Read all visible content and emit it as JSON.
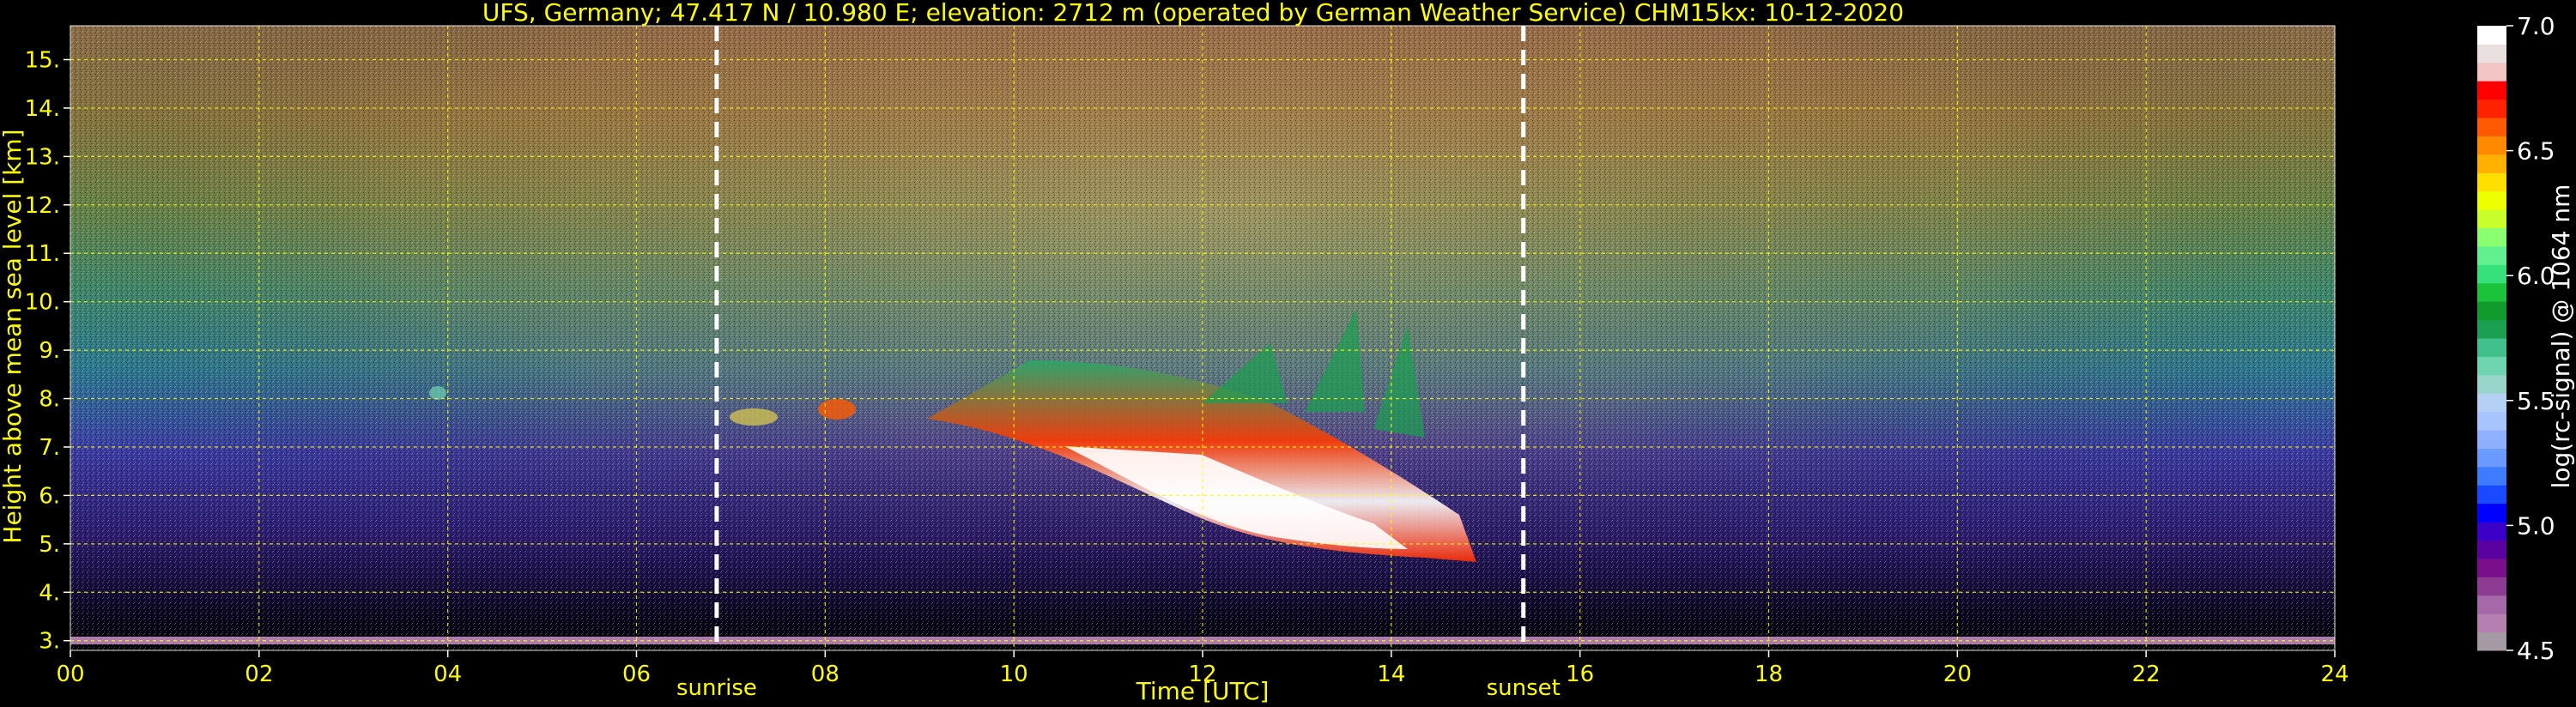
{
  "chart_data": {
    "type": "heatmap",
    "title": "UFS, Germany; 47.417 N / 10.980 E; elevation: 2712 m  (operated by German Weather Service)    CHM15kx: 10-12-2020",
    "xlabel": "Time [UTC]",
    "ylabel": "Height above mean sea level [km]",
    "x_ticks": [
      "00",
      "02",
      "04",
      "06",
      "08",
      "10",
      "12",
      "14",
      "16",
      "18",
      "20",
      "22",
      "24"
    ],
    "y_ticks": [
      "3.",
      "4.",
      "5.",
      "6.",
      "7.",
      "8.",
      "9.",
      "10.",
      "11.",
      "12.",
      "13.",
      "14.",
      "15."
    ],
    "xlim": [
      0,
      24
    ],
    "ylim": [
      2.8,
      15.7
    ],
    "grid": true,
    "markers": [
      {
        "label": "sunrise",
        "x": 6.85
      },
      {
        "label": "sunset",
        "x": 15.4
      }
    ],
    "colorbar": {
      "label": "log(rc-signal) @ 1064 nm",
      "ticks": [
        "4.5",
        "5.0",
        "5.5",
        "6.0",
        "6.5",
        "7.0"
      ],
      "range": [
        4.5,
        7.0
      ],
      "colors": [
        "#a59aa3",
        "#b57fb1",
        "#a568a8",
        "#8e3c93",
        "#7a0f8b",
        "#5a00a0",
        "#3b00c8",
        "#0000ff",
        "#1a4aff",
        "#3d7bff",
        "#6a9aff",
        "#8fb0ff",
        "#a8c4ff",
        "#b4d0f4",
        "#9ad5cb",
        "#6fd4b0",
        "#42c08c",
        "#1aa050",
        "#119b2d",
        "#1bc33a",
        "#36e07a",
        "#60f090",
        "#8aff70",
        "#c8ff2a",
        "#eeff00",
        "#ffde00",
        "#ffb000",
        "#ff8a00",
        "#ff5a00",
        "#ff2200",
        "#ff0000",
        "#f2c4c4",
        "#ebe0e0",
        "#ffffff"
      ]
    },
    "features": [
      {
        "name": "cloud layer",
        "time_start": 7.0,
        "time_end": 14.8,
        "height_top": 7.8,
        "height_bottom": 4.6,
        "signal": "high"
      },
      {
        "name": "surface layer",
        "height": 3.0,
        "signal": "high"
      }
    ]
  }
}
